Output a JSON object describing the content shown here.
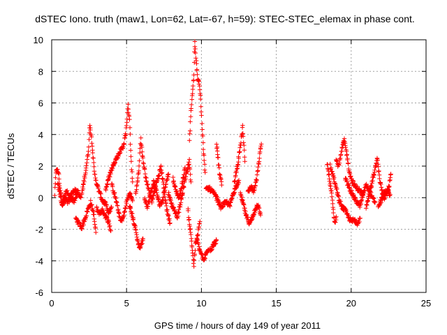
{
  "chart_data": {
    "type": "scatter",
    "title": "dSTEC Iono. truth (maw1, Lon=62, Lat=-67, h=59): STEC-STEC_elemax in phase cont.",
    "xlabel": "GPS time / hours of day 149 of year 2011",
    "ylabel": "dSTEC  / TECUs",
    "xlim": [
      0,
      25
    ],
    "ylim": [
      -6,
      10
    ],
    "xticks": [
      "0",
      "5",
      "10",
      "15",
      "20",
      "25"
    ],
    "yticks": [
      "-6",
      "-4",
      "-2",
      "0",
      "2",
      "4",
      "6",
      "8",
      "10"
    ],
    "xtick_values": [
      0,
      5,
      10,
      15,
      20,
      25
    ],
    "ytick_values": [
      -6,
      -4,
      -2,
      0,
      2,
      4,
      6,
      8,
      10
    ],
    "grid": true,
    "marker": "plus",
    "color": "#ff0000",
    "series": [
      {
        "traces": [
          [
            [
              0.2,
              0.2
            ],
            [
              0.3,
              1.8
            ],
            [
              0.45,
              1.6
            ],
            [
              0.55,
              0.6
            ],
            [
              0.7,
              -0.3
            ],
            [
              0.85,
              0.2
            ],
            [
              1.0,
              0.4
            ],
            [
              1.2,
              0.0
            ],
            [
              1.4,
              0.3
            ],
            [
              1.6,
              0.5
            ],
            [
              1.8,
              0.3
            ],
            [
              1.95,
              0.0
            ]
          ],
          [
            [
              0.4,
              0.9
            ],
            [
              0.55,
              0.2
            ],
            [
              0.7,
              -0.5
            ],
            [
              0.9,
              -0.1
            ],
            [
              1.1,
              -0.3
            ],
            [
              1.3,
              0.0
            ],
            [
              1.5,
              -0.2
            ],
            [
              1.7,
              0.2
            ]
          ],
          [
            [
              1.6,
              -1.3
            ],
            [
              1.8,
              -1.6
            ],
            [
              2.0,
              -1.9
            ],
            [
              2.2,
              -1.4
            ],
            [
              2.4,
              -0.8
            ],
            [
              2.6,
              -0.3
            ],
            [
              2.8,
              -1.0
            ],
            [
              2.95,
              -2.2
            ]
          ],
          [
            [
              2.0,
              0.2
            ],
            [
              2.15,
              1.0
            ],
            [
              2.3,
              1.9
            ],
            [
              2.45,
              3.0
            ],
            [
              2.55,
              4.7
            ],
            [
              2.7,
              3.4
            ],
            [
              2.85,
              1.6
            ],
            [
              3.0,
              0.9
            ],
            [
              3.2,
              0.3
            ],
            [
              3.4,
              -0.2
            ],
            [
              3.6,
              -0.4
            ],
            [
              3.8,
              -1.0
            ],
            [
              4.0,
              -0.6
            ]
          ],
          [
            [
              3.0,
              -0.7
            ],
            [
              3.2,
              -1.0
            ],
            [
              3.4,
              -0.8
            ],
            [
              3.6,
              -1.2
            ],
            [
              3.8,
              -1.5
            ],
            [
              3.95,
              -2.1
            ]
          ],
          [
            [
              3.6,
              0.5
            ],
            [
              3.8,
              1.2
            ],
            [
              4.0,
              1.8
            ],
            [
              4.2,
              2.3
            ],
            [
              4.4,
              2.6
            ],
            [
              4.6,
              3.0
            ],
            [
              4.8,
              3.3
            ],
            [
              4.95,
              4.1
            ],
            [
              5.1,
              5.8
            ],
            [
              5.2,
              5.0
            ],
            [
              5.3,
              2.5
            ],
            [
              5.4,
              1.0
            ]
          ],
          [
            [
              4.0,
              0.8
            ],
            [
              4.2,
              0.2
            ],
            [
              4.4,
              -0.6
            ],
            [
              4.6,
              -1.5
            ],
            [
              4.8,
              -1.2
            ],
            [
              5.0,
              -0.3
            ],
            [
              5.2,
              0.3
            ],
            [
              5.4,
              -0.2
            ]
          ],
          [
            [
              5.2,
              -0.5
            ],
            [
              5.4,
              -1.2
            ],
            [
              5.6,
              -2.0
            ],
            [
              5.75,
              -2.8
            ],
            [
              5.9,
              -3.2
            ],
            [
              6.1,
              -2.6
            ]
          ],
          [
            [
              5.6,
              0.2
            ],
            [
              5.8,
              1.5
            ],
            [
              5.95,
              3.7
            ],
            [
              6.1,
              2.4
            ],
            [
              6.3,
              1.2
            ],
            [
              6.5,
              0.4
            ],
            [
              6.7,
              -0.2
            ],
            [
              6.9,
              0.6
            ],
            [
              7.1,
              1.3
            ],
            [
              7.3,
              1.9
            ],
            [
              7.5,
              0.5
            ],
            [
              7.7,
              -0.8
            ],
            [
              7.9,
              -1.6
            ]
          ],
          [
            [
              6.2,
              0.0
            ],
            [
              6.4,
              -0.6
            ],
            [
              6.6,
              0.2
            ],
            [
              6.8,
              1.0
            ],
            [
              7.0,
              0.4
            ],
            [
              7.2,
              -0.5
            ],
            [
              7.4,
              -0.2
            ],
            [
              7.6,
              0.8
            ],
            [
              7.8,
              1.5
            ]
          ],
          [
            [
              7.8,
              0.3
            ],
            [
              8.0,
              -0.4
            ],
            [
              8.2,
              -0.8
            ],
            [
              8.4,
              -1.2
            ],
            [
              8.6,
              -0.4
            ],
            [
              8.8,
              0.6
            ],
            [
              9.0,
              1.6
            ],
            [
              9.2,
              2.3
            ],
            [
              9.3,
              1.0
            ]
          ],
          [
            [
              8.1,
              1.2
            ],
            [
              8.3,
              0.4
            ],
            [
              8.5,
              0.0
            ],
            [
              8.7,
              0.8
            ],
            [
              8.9,
              1.9
            ]
          ],
          [
            [
              9.1,
              -0.8
            ],
            [
              9.2,
              -1.6
            ],
            [
              9.3,
              -2.4
            ],
            [
              9.4,
              -3.3
            ],
            [
              9.5,
              -4.3
            ],
            [
              9.6,
              -3.0
            ],
            [
              9.75,
              -2.4
            ],
            [
              9.9,
              -1.5
            ]
          ],
          [
            [
              9.2,
              3.6
            ],
            [
              9.3,
              5.5
            ],
            [
              9.4,
              6.6
            ],
            [
              9.5,
              7.8
            ],
            [
              9.55,
              9.8
            ],
            [
              9.65,
              8.6
            ],
            [
              9.75,
              7.6
            ],
            [
              9.85,
              7.3
            ],
            [
              9.95,
              6.2
            ],
            [
              10.05,
              4.4
            ],
            [
              10.15,
              2.8
            ],
            [
              10.25,
              1.6
            ]
          ],
          [
            [
              9.7,
              -2.6
            ],
            [
              9.85,
              -3.2
            ],
            [
              10.0,
              -3.6
            ],
            [
              10.15,
              -4.0
            ],
            [
              10.3,
              -3.6
            ],
            [
              10.45,
              -3.2
            ],
            [
              10.6,
              -3.3
            ],
            [
              10.8,
              -3.0
            ],
            [
              11.0,
              -2.7
            ]
          ],
          [
            [
              10.3,
              0.5
            ],
            [
              10.5,
              0.6
            ],
            [
              10.7,
              0.4
            ],
            [
              10.9,
              0.2
            ],
            [
              11.1,
              -0.2
            ],
            [
              11.3,
              -0.6
            ],
            [
              11.5,
              -0.4
            ],
            [
              11.7,
              -0.3
            ],
            [
              11.9,
              -0.5
            ],
            [
              12.1,
              0.2
            ],
            [
              12.3,
              0.7
            ],
            [
              12.5,
              1.1
            ]
          ],
          [
            [
              11.0,
              3.4
            ],
            [
              11.1,
              2.6
            ],
            [
              11.2,
              1.6
            ],
            [
              11.35,
              0.8
            ]
          ],
          [
            [
              12.2,
              1.0
            ],
            [
              12.4,
              2.0
            ],
            [
              12.6,
              3.2
            ],
            [
              12.75,
              4.5
            ],
            [
              12.9,
              2.3
            ]
          ],
          [
            [
              12.6,
              0.2
            ],
            [
              12.8,
              -0.4
            ],
            [
              13.0,
              -1.2
            ],
            [
              13.2,
              -1.6
            ],
            [
              13.4,
              -1.3
            ],
            [
              13.6,
              -0.7
            ],
            [
              13.8,
              -0.4
            ],
            [
              13.95,
              -1.1
            ]
          ],
          [
            [
              13.1,
              0.3
            ],
            [
              13.3,
              0.7
            ],
            [
              13.5,
              0.4
            ],
            [
              13.7,
              1.2
            ],
            [
              13.85,
              2.4
            ],
            [
              14.0,
              3.4
            ]
          ],
          [
            [
              18.4,
              2.2
            ],
            [
              18.5,
              1.5
            ],
            [
              18.6,
              0.8
            ],
            [
              18.7,
              0.2
            ],
            [
              18.8,
              -0.8
            ],
            [
              18.9,
              -1.6
            ],
            [
              19.0,
              -1.2
            ]
          ],
          [
            [
              18.6,
              2.0
            ],
            [
              18.8,
              1.4
            ],
            [
              19.0,
              0.6
            ],
            [
              19.2,
              -0.2
            ],
            [
              19.4,
              -0.6
            ],
            [
              19.6,
              -0.8
            ],
            [
              19.8,
              -1.2
            ],
            [
              20.0,
              -1.5
            ],
            [
              20.2,
              -1.4
            ],
            [
              20.4,
              -1.6
            ],
            [
              20.6,
              -1.3
            ]
          ],
          [
            [
              19.0,
              2.4
            ],
            [
              19.15,
              2.0
            ],
            [
              19.3,
              2.6
            ],
            [
              19.45,
              3.4
            ],
            [
              19.55,
              3.6
            ],
            [
              19.7,
              2.8
            ],
            [
              19.85,
              1.8
            ],
            [
              20.0,
              1.2
            ],
            [
              20.2,
              0.8
            ],
            [
              20.4,
              0.6
            ],
            [
              20.6,
              0.4
            ],
            [
              20.8,
              0.2
            ]
          ],
          [
            [
              19.6,
              1.2
            ],
            [
              19.8,
              0.8
            ],
            [
              20.0,
              0.4
            ],
            [
              20.2,
              0.0
            ],
            [
              20.4,
              -0.3
            ],
            [
              20.6,
              -0.5
            ],
            [
              20.8,
              0.2
            ],
            [
              21.0,
              0.8
            ],
            [
              21.2,
              0.5
            ],
            [
              21.4,
              0.0
            ],
            [
              21.6,
              -0.3
            ]
          ],
          [
            [
              21.0,
              -0.6
            ],
            [
              21.2,
              0.2
            ],
            [
              21.4,
              1.0
            ],
            [
              21.6,
              1.8
            ],
            [
              21.75,
              2.5
            ],
            [
              21.9,
              1.2
            ],
            [
              22.05,
              0.4
            ],
            [
              22.2,
              0.0
            ],
            [
              22.4,
              0.3
            ],
            [
              22.55,
              0.8
            ],
            [
              22.65,
              1.5
            ]
          ],
          [
            [
              21.8,
              -0.5
            ],
            [
              22.0,
              -0.2
            ],
            [
              22.2,
              0.3
            ],
            [
              22.4,
              0.5
            ],
            [
              22.6,
              0.2
            ]
          ]
        ]
      }
    ]
  }
}
